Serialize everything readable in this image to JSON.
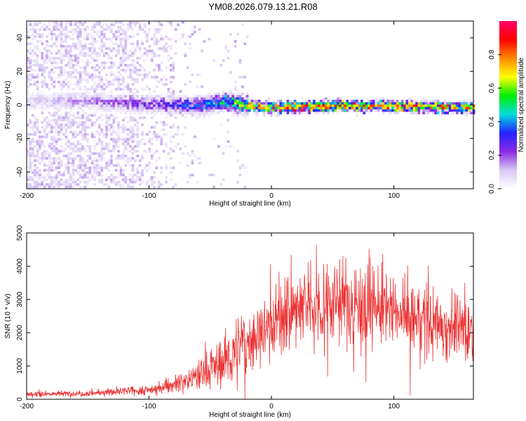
{
  "title": "YM08.2026.079.13.21.R08",
  "chart_data": [
    {
      "type": "heatmap",
      "name": "spectrogram",
      "xlabel": "Height of straight line (km)",
      "ylabel": "Frequency (Hz)",
      "xlim": [
        -200,
        165
      ],
      "ylim": [
        -50,
        50
      ],
      "xticks": [
        -200,
        -100,
        0,
        100
      ],
      "yticks": [
        -40,
        -20,
        0,
        20,
        40
      ],
      "colorbar": {
        "label": "Normalized spectral amplitude",
        "range": [
          0,
          1
        ],
        "ticks": [
          0.0,
          0.2,
          0.4,
          0.6,
          0.8
        ],
        "tick_labels": [
          "0.0",
          "0.2",
          "0.4",
          "0.6",
          "0.8"
        ],
        "colormap": [
          "#ffffff",
          "#d8c8f4",
          "#8a2be2",
          "#2222ff",
          "#00dddd",
          "#00ee00",
          "#ffff00",
          "#ff8800",
          "#ff0000",
          "#ff0066"
        ]
      },
      "ridge_center_hz": [
        {
          "x": -150,
          "y": 3
        },
        {
          "x": -100,
          "y": 1
        },
        {
          "x": -60,
          "y": 0
        },
        {
          "x": -40,
          "y": 3
        },
        {
          "x": -20,
          "y": 0
        },
        {
          "x": 0,
          "y": -1
        },
        {
          "x": 50,
          "y": 0
        },
        {
          "x": 100,
          "y": 0
        },
        {
          "x": 165,
          "y": -1
        }
      ],
      "ridge_peak_amplitude": [
        {
          "x": -200,
          "y": 0.1
        },
        {
          "x": -140,
          "y": 0.2
        },
        {
          "x": -90,
          "y": 0.3
        },
        {
          "x": -50,
          "y": 0.45
        },
        {
          "x": -20,
          "y": 0.8
        },
        {
          "x": 0,
          "y": 0.9
        },
        {
          "x": 100,
          "y": 0.9
        },
        {
          "x": 165,
          "y": 0.85
        }
      ]
    },
    {
      "type": "line",
      "name": "snr",
      "xlabel": "Height of straight line (km)",
      "ylabel": "SNR (10 * v/v)",
      "xlim": [
        -200,
        165
      ],
      "ylim": [
        0,
        5000
      ],
      "xticks": [
        -200,
        -100,
        0,
        100
      ],
      "yticks": [
        0,
        1000,
        2000,
        3000,
        4000,
        5000
      ],
      "color": "#ee3333",
      "envelope": [
        {
          "x": -200,
          "y": 150
        },
        {
          "x": -150,
          "y": 180
        },
        {
          "x": -100,
          "y": 280
        },
        {
          "x": -80,
          "y": 450
        },
        {
          "x": -60,
          "y": 700
        },
        {
          "x": -40,
          "y": 1100
        },
        {
          "x": -20,
          "y": 1700
        },
        {
          "x": 0,
          "y": 2300
        },
        {
          "x": 20,
          "y": 2700
        },
        {
          "x": 50,
          "y": 2950
        },
        {
          "x": 80,
          "y": 2850
        },
        {
          "x": 100,
          "y": 2600
        },
        {
          "x": 130,
          "y": 2300
        },
        {
          "x": 150,
          "y": 2200
        },
        {
          "x": 165,
          "y": 2100
        }
      ]
    }
  ]
}
